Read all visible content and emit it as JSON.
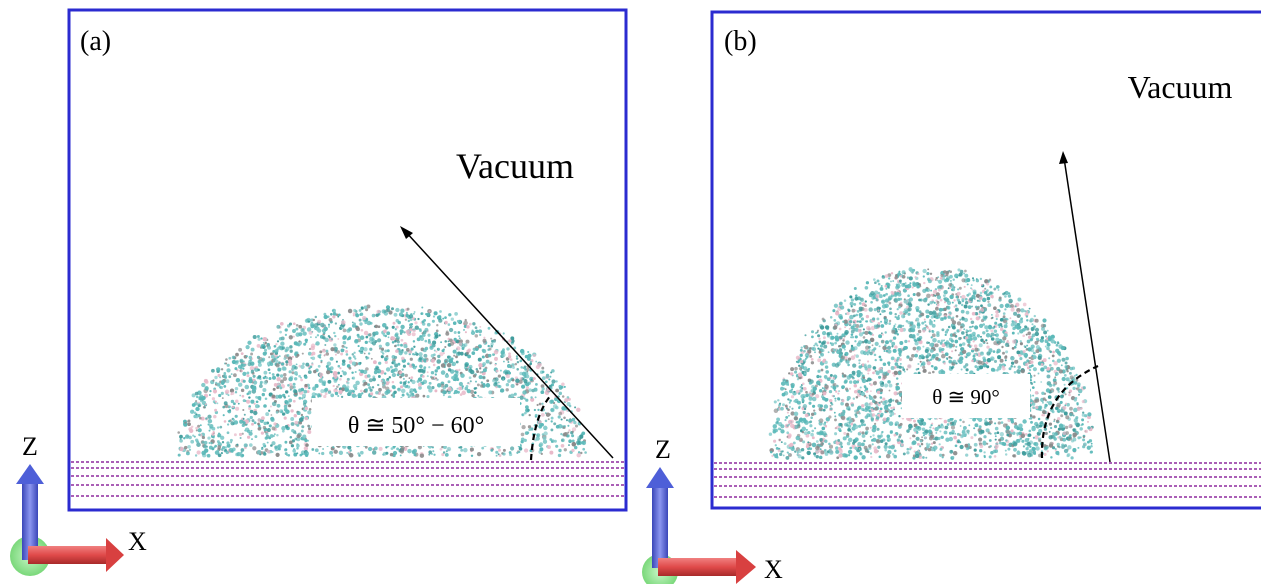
{
  "panels": [
    {
      "label": "(a)",
      "region_label": "Vacuum",
      "angle_label": "θ ≅ 50° − 60°",
      "contact_angle_deg_range": [
        50,
        60
      ]
    },
    {
      "label": "(b)",
      "region_label": "Vacuum",
      "angle_label": "θ ≅ 90°",
      "contact_angle_deg": 90
    }
  ],
  "axes_triad": {
    "vertical_label": "Z",
    "horizontal_label": "X"
  },
  "colors": {
    "box_border": "#2b2bd0",
    "substrate_lines": "#8e2a9e",
    "droplet_cyan": "#5ab8b8",
    "droplet_pink": "#e8b8c8",
    "droplet_gray": "#8a8a8a",
    "z_arrow": "#4e5fd8",
    "x_arrow": "#e04a4a",
    "origin": "#8de88d"
  }
}
